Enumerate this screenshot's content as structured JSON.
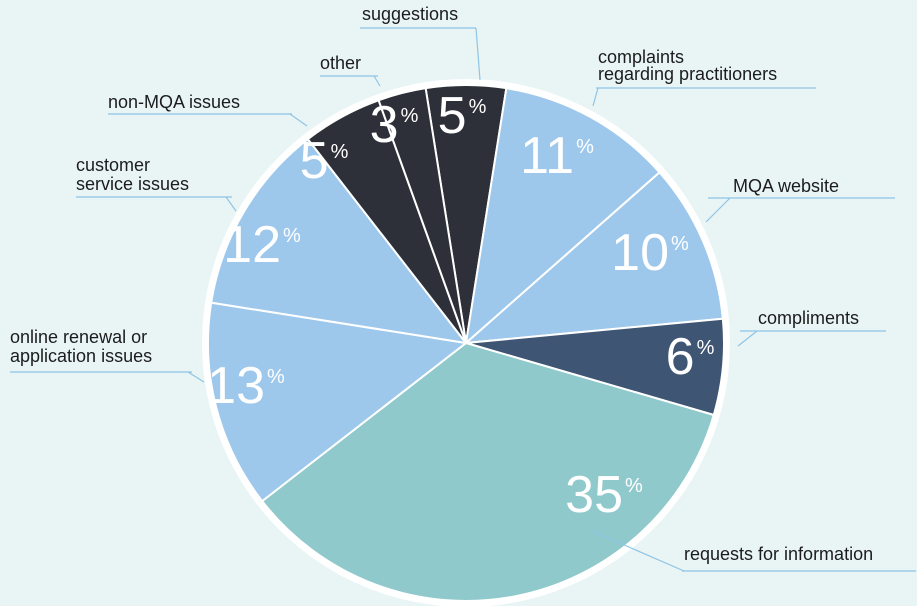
{
  "chart_data": {
    "type": "pie",
    "categories": [
      [
        "suggestions"
      ],
      [
        "complaints",
        "regarding practitioners"
      ],
      [
        "MQA website"
      ],
      [
        "compliments"
      ],
      [
        "requests for information"
      ],
      [
        "online renewal or",
        "application issues"
      ],
      [
        "customer",
        "service issues"
      ],
      [
        "non-MQA issues"
      ],
      [
        "other"
      ]
    ],
    "values": [
      5,
      11,
      10,
      6,
      35,
      13,
      12,
      5,
      3
    ],
    "colors": [
      "#2e3039",
      "#9dc8ec",
      "#9dc8ec",
      "#3f5574",
      "#90c9cb",
      "#9dc8ec",
      "#9dc8ec",
      "#2e3039",
      "#2e3039"
    ],
    "percent_sign": "%"
  }
}
